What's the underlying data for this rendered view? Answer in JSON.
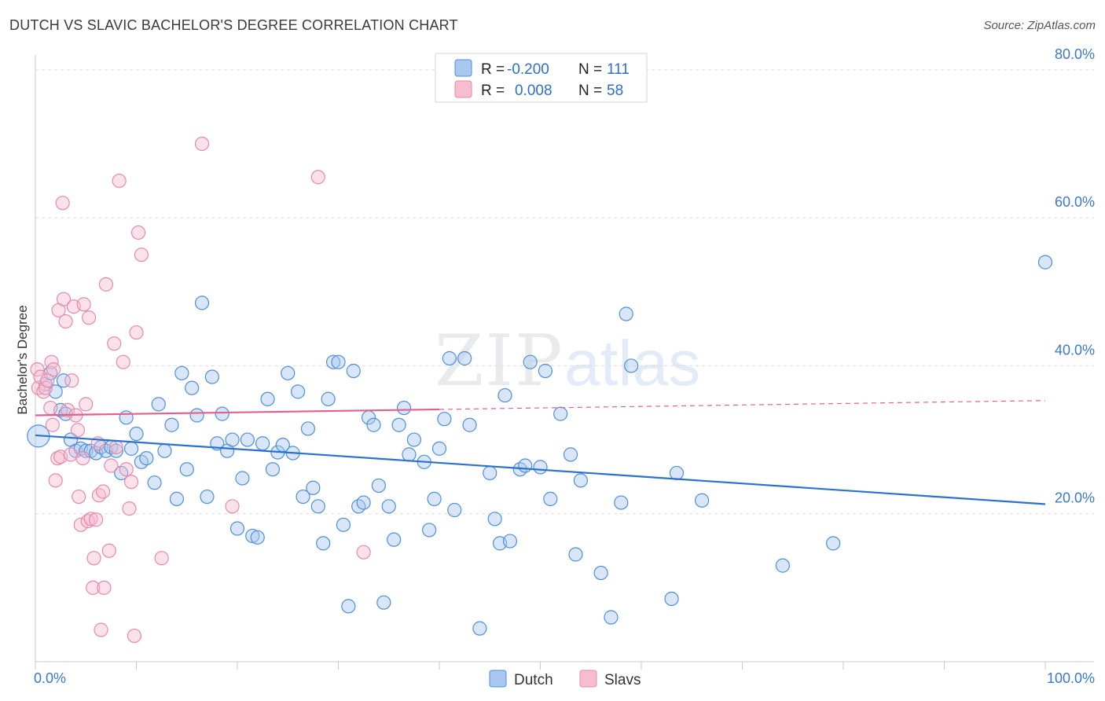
{
  "title": "DUTCH VS SLAVIC BACHELOR'S DEGREE CORRELATION CHART",
  "source": "Source: ZipAtlas.com",
  "colors": {
    "dutch_fill": "#a9c8f0",
    "dutch_stroke": "#4f8fd9",
    "dutch_line": "#2a72d0",
    "slavs_fill": "#f6bcd0",
    "slavs_stroke": "#e58aab",
    "slavs_line": "#e3608e",
    "tick_text": "#3b78c9",
    "grid": "#dcdcdc"
  },
  "chart_data": {
    "type": "scatter",
    "xlabel": "",
    "ylabel": "Bachelor's Degree",
    "xlim": [
      0,
      100
    ],
    "ylim": [
      0,
      82
    ],
    "y_ticks": [
      20,
      40,
      60,
      80
    ],
    "y_tick_labels": [
      "20.0%",
      "40.0%",
      "60.0%",
      "80.0%"
    ],
    "x_tick_labels": [
      "0.0%",
      "100.0%"
    ],
    "legend": {
      "dutch": {
        "r_label": "R =",
        "r_value": "-0.200",
        "n_label": "N =",
        "n_value": "111"
      },
      "slavs": {
        "r_label": "R =",
        "r_value": "0.008",
        "n_label": "N =",
        "n_value": "58"
      }
    },
    "series": [
      {
        "name": "Dutch",
        "trend": {
          "x0": 0,
          "y0": 30.6,
          "x1": 100,
          "y1": 21.3
        },
        "points": [
          [
            0.3,
            30.5
          ],
          [
            1.0,
            37.5
          ],
          [
            1.5,
            39.0
          ],
          [
            2.0,
            36.5
          ],
          [
            2.5,
            34.0
          ],
          [
            3.0,
            33.5
          ],
          [
            3.5,
            30.0
          ],
          [
            4.0,
            28.5
          ],
          [
            4.5,
            28.8
          ],
          [
            5.0,
            28.5
          ],
          [
            5.5,
            28.5
          ],
          [
            6.0,
            28.2
          ],
          [
            6.5,
            29.0
          ],
          [
            7.0,
            28.5
          ],
          [
            7.5,
            29.0
          ],
          [
            8.0,
            28.5
          ],
          [
            8.5,
            25.5
          ],
          [
            9.0,
            33.0
          ],
          [
            9.5,
            28.8
          ],
          [
            10.0,
            30.8
          ],
          [
            10.5,
            27.0
          ],
          [
            11.0,
            27.5
          ],
          [
            11.8,
            24.2
          ],
          [
            12.2,
            34.8
          ],
          [
            12.8,
            28.5
          ],
          [
            13.5,
            32.0
          ],
          [
            14.0,
            22.0
          ],
          [
            14.5,
            39.0
          ],
          [
            15.0,
            26.0
          ],
          [
            15.5,
            37.0
          ],
          [
            16.0,
            33.3
          ],
          [
            16.5,
            48.5
          ],
          [
            17.0,
            22.3
          ],
          [
            17.5,
            38.5
          ],
          [
            18.0,
            29.5
          ],
          [
            18.5,
            33.5
          ],
          [
            19.0,
            28.5
          ],
          [
            19.5,
            30.0
          ],
          [
            20.0,
            18.0
          ],
          [
            20.5,
            24.8
          ],
          [
            21.0,
            30.0
          ],
          [
            21.5,
            17.0
          ],
          [
            22.0,
            16.8
          ],
          [
            22.5,
            29.5
          ],
          [
            23.0,
            35.5
          ],
          [
            23.5,
            26.0
          ],
          [
            24.0,
            28.3
          ],
          [
            24.5,
            29.3
          ],
          [
            25.0,
            39.0
          ],
          [
            25.5,
            28.2
          ],
          [
            26.0,
            36.5
          ],
          [
            26.5,
            22.3
          ],
          [
            27.0,
            31.5
          ],
          [
            27.5,
            23.5
          ],
          [
            28.0,
            21.0
          ],
          [
            28.5,
            16.0
          ],
          [
            29.0,
            35.5
          ],
          [
            29.5,
            40.5
          ],
          [
            30.0,
            40.5
          ],
          [
            30.5,
            18.5
          ],
          [
            31.0,
            7.5
          ],
          [
            31.5,
            39.3
          ],
          [
            32.0,
            21.0
          ],
          [
            32.5,
            21.5
          ],
          [
            33.0,
            33.0
          ],
          [
            33.5,
            32.0
          ],
          [
            34.0,
            23.8
          ],
          [
            34.5,
            8.0
          ],
          [
            35.0,
            21.0
          ],
          [
            35.5,
            16.5
          ],
          [
            36.0,
            32.0
          ],
          [
            36.5,
            34.3
          ],
          [
            37.0,
            28.0
          ],
          [
            37.5,
            30.0
          ],
          [
            38.5,
            27.0
          ],
          [
            39.0,
            17.8
          ],
          [
            39.5,
            22.0
          ],
          [
            40.0,
            28.8
          ],
          [
            40.5,
            32.8
          ],
          [
            41.0,
            41.0
          ],
          [
            41.5,
            20.5
          ],
          [
            42.5,
            41.0
          ],
          [
            43.0,
            32.0
          ],
          [
            44.0,
            4.5
          ],
          [
            45.0,
            25.5
          ],
          [
            45.5,
            19.3
          ],
          [
            46.0,
            16.0
          ],
          [
            46.5,
            36.0
          ],
          [
            47.0,
            16.3
          ],
          [
            48.0,
            26.0
          ],
          [
            48.5,
            26.5
          ],
          [
            49.0,
            40.5
          ],
          [
            50.0,
            26.3
          ],
          [
            50.5,
            39.3
          ],
          [
            51.0,
            22.0
          ],
          [
            52.0,
            33.5
          ],
          [
            53.0,
            28.0
          ],
          [
            53.5,
            14.5
          ],
          [
            54.0,
            24.5
          ],
          [
            56.0,
            12.0
          ],
          [
            57.0,
            6.0
          ],
          [
            58.0,
            21.5
          ],
          [
            58.5,
            47.0
          ],
          [
            59.0,
            40.0
          ],
          [
            63.0,
            8.5
          ],
          [
            63.5,
            25.5
          ],
          [
            66.0,
            21.8
          ],
          [
            74.0,
            13.0
          ],
          [
            79.0,
            16.0
          ],
          [
            100.0,
            54.0
          ],
          [
            2.8,
            38.0
          ]
        ]
      },
      {
        "name": "Slavs",
        "trend": {
          "x0": 0,
          "y0": 33.3,
          "x1": 40,
          "y1": 34.1,
          "dash_x1": 100,
          "dash_y1": 35.3
        },
        "points": [
          [
            0.2,
            39.5
          ],
          [
            0.3,
            37.0
          ],
          [
            0.5,
            38.5
          ],
          [
            0.8,
            36.5
          ],
          [
            1.0,
            37.0
          ],
          [
            1.2,
            38.0
          ],
          [
            1.5,
            34.3
          ],
          [
            1.6,
            40.5
          ],
          [
            1.7,
            32.0
          ],
          [
            1.8,
            39.5
          ],
          [
            2.0,
            24.5
          ],
          [
            2.2,
            27.5
          ],
          [
            2.3,
            47.5
          ],
          [
            2.5,
            27.7
          ],
          [
            2.7,
            62.0
          ],
          [
            2.8,
            49.0
          ],
          [
            3.0,
            46.0
          ],
          [
            3.2,
            34.0
          ],
          [
            3.5,
            28.0
          ],
          [
            3.6,
            38.0
          ],
          [
            3.8,
            48.0
          ],
          [
            4.0,
            33.3
          ],
          [
            4.2,
            31.3
          ],
          [
            4.3,
            22.3
          ],
          [
            4.5,
            18.5
          ],
          [
            4.7,
            27.5
          ],
          [
            5.0,
            34.8
          ],
          [
            5.2,
            19.0
          ],
          [
            5.3,
            46.5
          ],
          [
            5.5,
            19.3
          ],
          [
            5.7,
            10.0
          ],
          [
            5.8,
            14.0
          ],
          [
            6.0,
            19.2
          ],
          [
            6.2,
            29.5
          ],
          [
            6.3,
            22.5
          ],
          [
            6.5,
            4.3
          ],
          [
            6.7,
            23.0
          ],
          [
            6.8,
            10.0
          ],
          [
            7.0,
            51.0
          ],
          [
            7.3,
            15.0
          ],
          [
            7.5,
            26.5
          ],
          [
            7.8,
            43.0
          ],
          [
            8.0,
            29.0
          ],
          [
            8.3,
            65.0
          ],
          [
            8.7,
            40.5
          ],
          [
            9.0,
            26.0
          ],
          [
            9.3,
            20.7
          ],
          [
            9.5,
            24.3
          ],
          [
            9.8,
            3.5
          ],
          [
            10.0,
            44.5
          ],
          [
            10.2,
            58.0
          ],
          [
            10.5,
            55.0
          ],
          [
            12.5,
            14.0
          ],
          [
            16.5,
            70.0
          ],
          [
            19.5,
            21.0
          ],
          [
            28.0,
            65.5
          ],
          [
            32.5,
            14.8
          ],
          [
            4.8,
            48.3
          ]
        ]
      }
    ]
  }
}
